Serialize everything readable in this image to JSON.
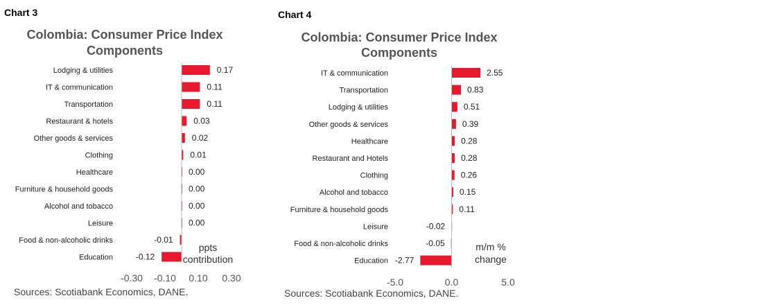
{
  "chart_data": [
    {
      "label": "Chart 3",
      "type": "bar",
      "orientation": "horizontal",
      "title": "Colombia: Consumer Price Index Components",
      "title_lines": [
        "Colombia: Consumer Price Index",
        "Components"
      ],
      "categories": [
        "Lodging & utilities",
        "IT & communication",
        "Transportation",
        "Restaurant & hotels",
        "Other goods & services",
        "Clothing",
        "Healthcare",
        "Furniture & household goods",
        "Alcohol and tobacco",
        "Leisure",
        "Food & non-alcoholic drinks",
        "Education"
      ],
      "values": [
        0.17,
        0.11,
        0.11,
        0.03,
        0.02,
        0.01,
        0.0,
        0.0,
        0.0,
        0.0,
        -0.01,
        -0.12
      ],
      "value_labels": [
        "0.17",
        "0.11",
        "0.11",
        "0.03",
        "0.02",
        "0.01",
        "0.00",
        "0.00",
        "0.00",
        "0.00",
        "-0.01",
        "-0.12"
      ],
      "xlim": [
        -0.3,
        0.3
      ],
      "xticks": [
        "-0.30",
        "-0.10",
        "0.10",
        "0.30"
      ],
      "unit_label": [
        "ppts",
        "contribution"
      ],
      "bar_color": "#e8192c",
      "source": "Sources: Scotiabank Economics, DANE.",
      "grid": false
    },
    {
      "label": "Chart 4",
      "type": "bar",
      "orientation": "horizontal",
      "title": "Colombia: Consumer Price Index Components",
      "title_lines": [
        "Colombia: Consumer Price Index",
        "Components"
      ],
      "categories": [
        "IT & communication",
        "Transportation",
        "Lodging & utilities",
        "Other goods & services",
        "Healthcare",
        "Restaurant and Hotels",
        "Clothing",
        "Alcohol and tobacco",
        "Furniture & household goods",
        "Leisure",
        "Food & non-alcoholic drinks",
        "Education"
      ],
      "values": [
        2.55,
        0.83,
        0.51,
        0.39,
        0.28,
        0.28,
        0.26,
        0.15,
        0.11,
        -0.02,
        -0.05,
        -2.77
      ],
      "value_labels": [
        "2.55",
        "0.83",
        "0.51",
        "0.39",
        "0.28",
        "0.28",
        "0.26",
        "0.15",
        "0.11",
        "-0.02",
        "-0.05",
        "-2.77"
      ],
      "xlim": [
        -5.0,
        5.0
      ],
      "xticks": [
        "-5.0",
        "0.0",
        "5.0"
      ],
      "unit_label": [
        "m/m %",
        "change"
      ],
      "bar_color": "#e8192c",
      "source": "Sources: Scotiabank Economics, DANE.",
      "grid": false
    }
  ]
}
